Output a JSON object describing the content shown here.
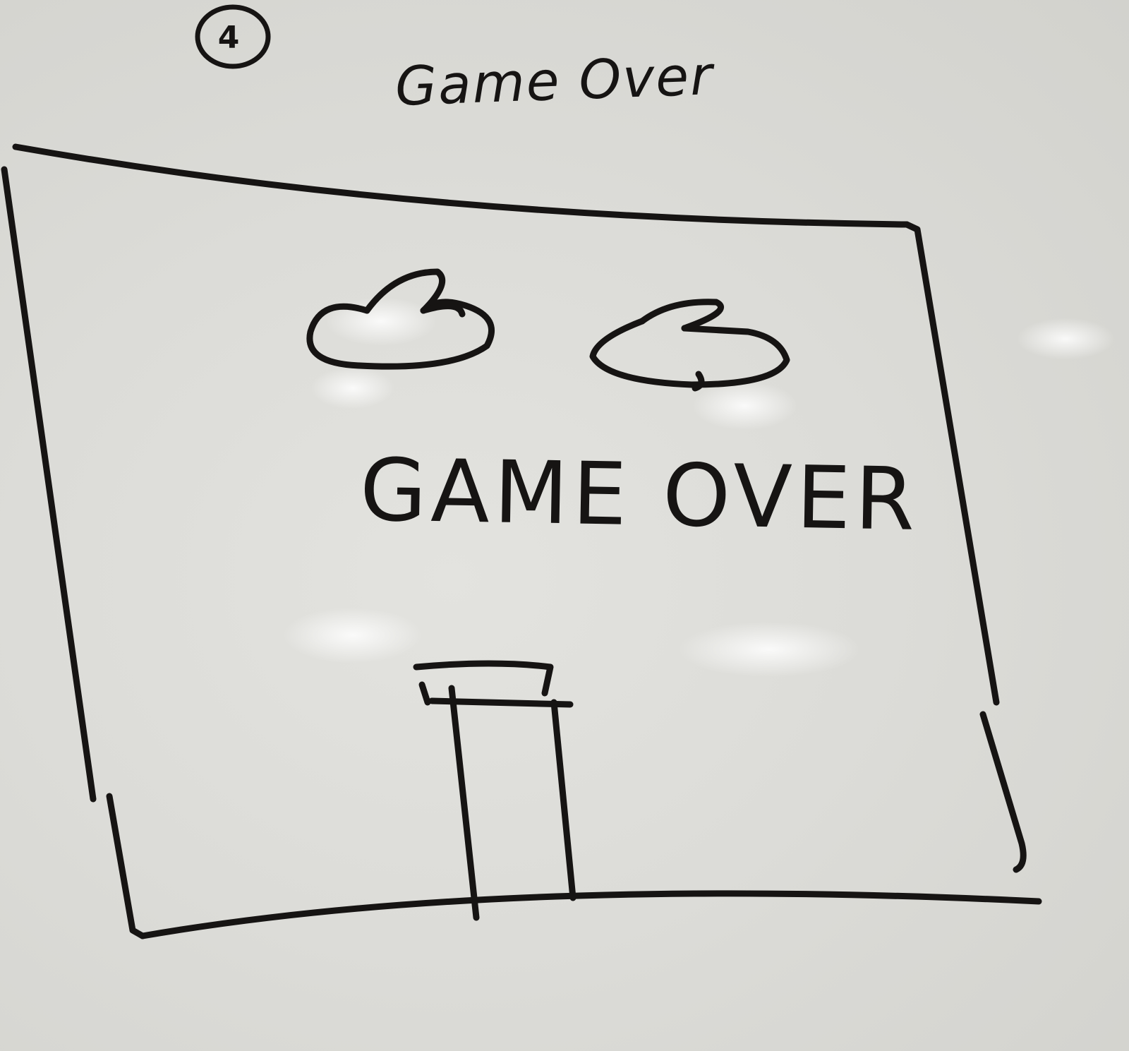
{
  "sketch": {
    "step_number": "4",
    "screen_label": "Game Over",
    "screen_title": "GAME OVER"
  },
  "colors": {
    "ink": "#161413",
    "board": "#dcdcd8"
  },
  "icons": {
    "clouds": [
      "cloud-icon",
      "cloud-icon"
    ],
    "scenery": "pipe-icon"
  }
}
